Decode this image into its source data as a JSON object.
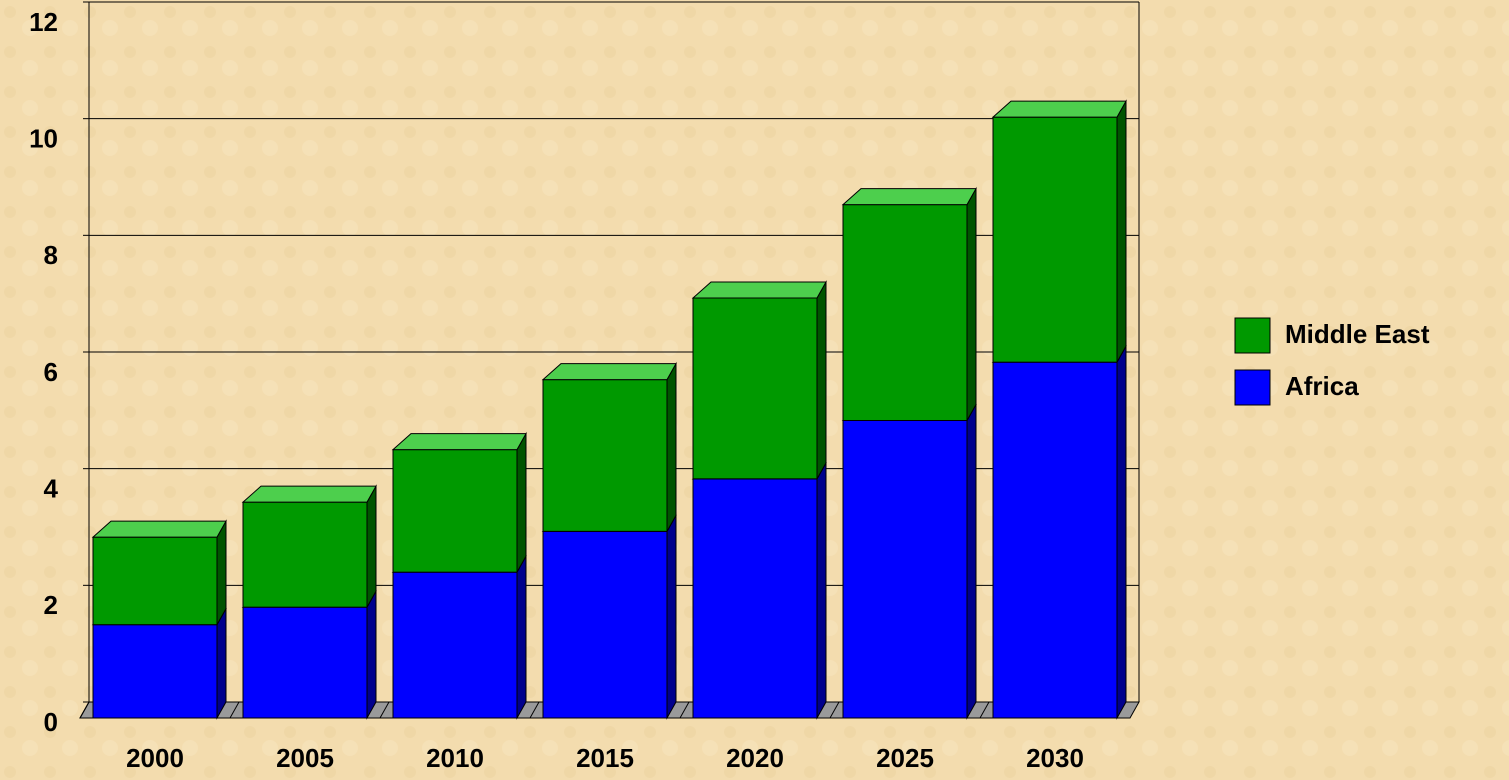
{
  "chart_data": {
    "type": "bar3d_stacked",
    "categories": [
      "2000",
      "2005",
      "2010",
      "2015",
      "2020",
      "2025",
      "2030"
    ],
    "series": [
      {
        "name": "Africa",
        "color": "#0000ff",
        "values": [
          1.6,
          1.9,
          2.5,
          3.2,
          4.1,
          5.1,
          6.1
        ]
      },
      {
        "name": "Middle East",
        "color": "#009900",
        "values": [
          1.5,
          1.8,
          2.1,
          2.6,
          3.1,
          3.7,
          4.2
        ]
      }
    ],
    "ylim": [
      0,
      12
    ],
    "yticks": [
      0,
      2,
      4,
      6,
      8,
      10,
      12
    ],
    "grid": true,
    "legend": "right"
  }
}
